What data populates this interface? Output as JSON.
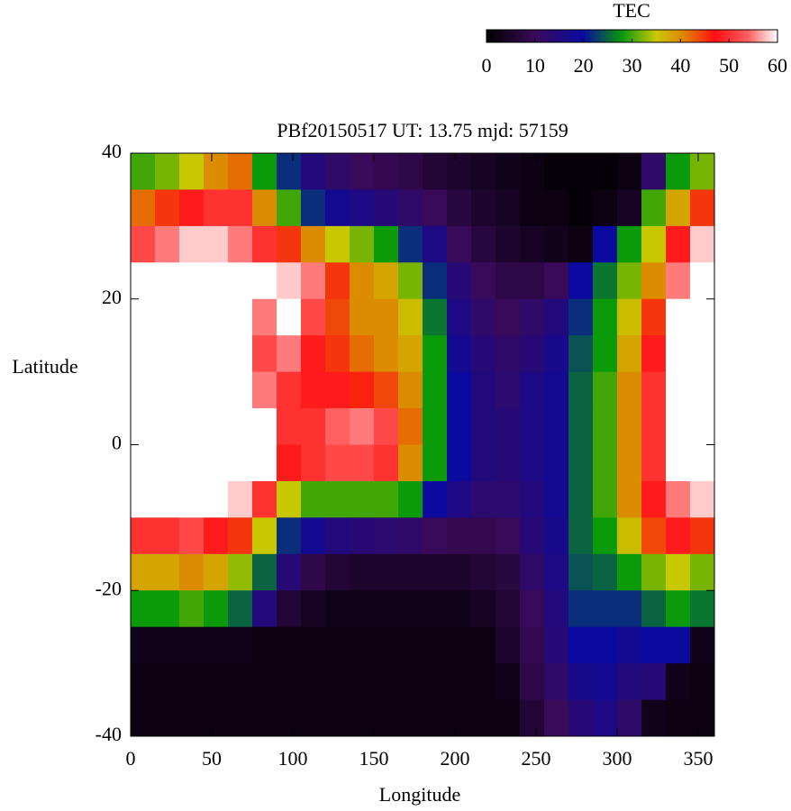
{
  "chart_data": {
    "type": "heatmap",
    "title": "PBf20150517  UT: 13.75  mjd: 57159",
    "x_label": "Longitude",
    "y_label": "Latitude",
    "xlim": [
      0,
      360
    ],
    "ylim": [
      -40,
      40
    ],
    "xticks": [
      0,
      50,
      100,
      150,
      200,
      250,
      300,
      350
    ],
    "yticks": [
      -40,
      -20,
      0,
      20,
      40
    ],
    "x": [
      7.5,
      22.5,
      37.5,
      52.5,
      67.5,
      82.5,
      97.5,
      112.5,
      127.5,
      142.5,
      157.5,
      172.5,
      187.5,
      202.5,
      217.5,
      232.5,
      247.5,
      262.5,
      277.5,
      292.5,
      307.5,
      322.5,
      337.5,
      352.5
    ],
    "y": [
      37.5,
      32.5,
      27.5,
      22.5,
      17.5,
      12.5,
      7.5,
      2.5,
      -2.5,
      -7.5,
      -12.5,
      -17.5,
      -22.5,
      -27.5,
      -32.5,
      -37.5
    ],
    "z": [
      [
        30,
        42,
        52,
        62,
        65,
        65,
        65,
        65,
        65,
        60,
        50,
        38,
        28,
        3,
        2,
        2
      ],
      [
        32,
        45,
        55,
        65,
        65,
        65,
        65,
        65,
        65,
        60,
        50,
        38,
        28,
        3,
        2,
        2
      ],
      [
        35,
        48,
        58,
        65,
        65,
        65,
        65,
        65,
        65,
        62,
        52,
        40,
        30,
        3,
        2,
        2
      ],
      [
        40,
        50,
        58,
        65,
        65,
        65,
        65,
        65,
        65,
        62,
        48,
        38,
        28,
        3,
        2,
        2
      ],
      [
        42,
        50,
        55,
        65,
        65,
        65,
        65,
        65,
        65,
        58,
        45,
        33,
        25,
        3,
        2,
        2
      ],
      [
        28,
        40,
        50,
        60,
        55,
        52,
        55,
        60,
        60,
        50,
        35,
        25,
        15,
        2,
        2,
        2
      ],
      [
        22,
        30,
        45,
        58,
        60,
        55,
        50,
        50,
        48,
        35,
        22,
        14,
        6,
        2,
        2,
        2
      ],
      [
        15,
        22,
        40,
        55,
        52,
        48,
        48,
        50,
        50,
        30,
        18,
        8,
        4,
        2,
        2,
        2
      ],
      [
        12,
        18,
        35,
        45,
        44,
        45,
        48,
        54,
        52,
        30,
        15,
        6,
        3,
        2,
        2,
        2
      ],
      [
        10,
        16,
        32,
        40,
        40,
        42,
        46,
        55,
        52,
        30,
        14,
        5,
        3,
        2,
        2,
        2
      ],
      [
        9,
        14,
        28,
        38,
        40,
        40,
        44,
        52,
        50,
        30,
        13,
        5,
        3,
        2,
        2,
        2
      ],
      [
        8,
        12,
        22,
        32,
        36,
        38,
        40,
        42,
        40,
        28,
        12,
        5,
        3,
        2,
        2,
        2
      ],
      [
        6,
        10,
        16,
        22,
        26,
        28,
        28,
        28,
        28,
        20,
        10,
        5,
        3,
        2,
        2,
        2
      ],
      [
        5,
        7,
        10,
        14,
        16,
        18,
        20,
        20,
        20,
        16,
        9,
        5,
        3,
        2,
        2,
        2
      ],
      [
        4,
        5,
        7,
        10,
        12,
        14,
        15,
        15,
        15,
        13,
        9,
        6,
        4,
        2,
        2,
        2
      ],
      [
        3,
        4,
        5,
        8,
        10,
        12,
        13,
        14,
        14,
        13,
        10,
        7,
        6,
        5,
        3,
        2
      ],
      [
        2,
        2,
        4,
        8,
        12,
        14,
        16,
        16,
        16,
        15,
        14,
        12,
        10,
        9,
        8,
        6
      ],
      [
        1,
        2,
        3,
        10,
        15,
        17,
        18,
        18,
        18,
        18,
        17,
        16,
        15,
        14,
        12,
        10
      ],
      [
        1,
        1,
        2,
        20,
        22,
        24,
        25,
        25,
        25,
        25,
        25,
        24,
        22,
        20,
        17,
        14
      ],
      [
        1,
        2,
        20,
        26,
        28,
        28,
        30,
        30,
        30,
        30,
        28,
        25,
        22,
        20,
        18,
        16
      ],
      [
        2,
        4,
        28,
        32,
        36,
        38,
        40,
        40,
        40,
        40,
        36,
        28,
        22,
        18,
        15,
        12
      ],
      [
        12,
        30,
        35,
        40,
        45,
        48,
        50,
        50,
        50,
        48,
        44,
        32,
        25,
        20,
        14,
        3
      ],
      [
        28,
        38,
        48,
        55,
        60,
        62,
        62,
        62,
        62,
        55,
        48,
        35,
        28,
        20,
        3,
        2
      ],
      [
        32,
        45,
        58,
        65,
        65,
        65,
        65,
        65,
        65,
        58,
        45,
        32,
        26,
        3,
        2,
        2
      ]
    ],
    "colorbar": {
      "label": "TEC",
      "clim": [
        0,
        60
      ],
      "ticks": [
        0,
        10,
        20,
        30,
        40,
        50,
        60
      ],
      "colormap": [
        [
          0,
          "#000000"
        ],
        [
          10,
          "#3a0a5a"
        ],
        [
          20,
          "#0a0aa0"
        ],
        [
          28,
          "#0a9a0a"
        ],
        [
          35,
          "#c8c800"
        ],
        [
          41,
          "#e08000"
        ],
        [
          47,
          "#ff1010"
        ],
        [
          54,
          "#ff6060"
        ],
        [
          60,
          "#ffffff"
        ]
      ]
    }
  }
}
